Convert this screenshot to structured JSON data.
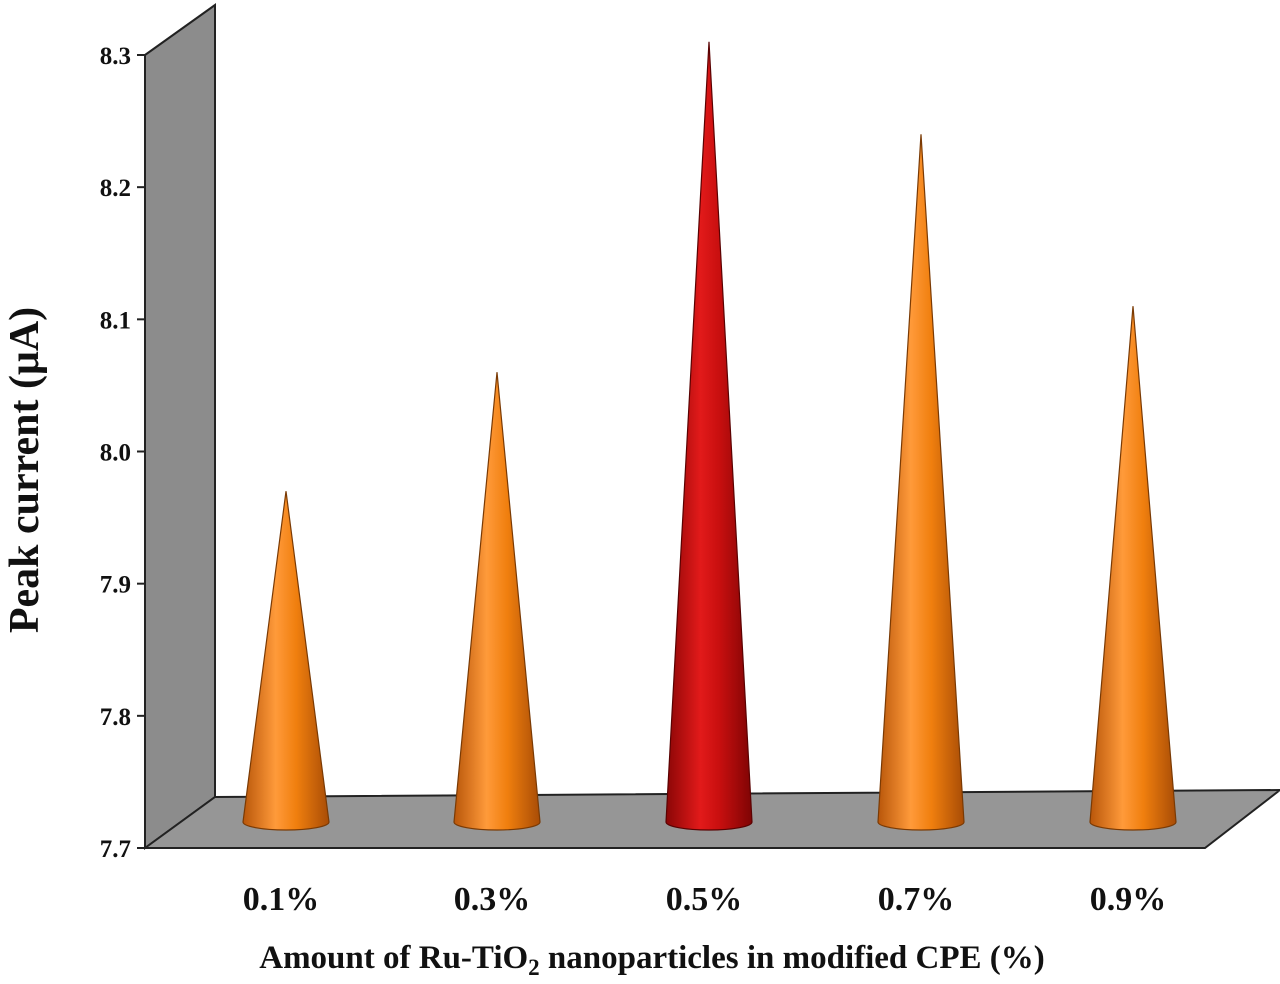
{
  "chart_data": {
    "type": "bar",
    "style": "3d-cone",
    "categories": [
      "0.1%",
      "0.3%",
      "0.5%",
      "0.7%",
      "0.9%"
    ],
    "values": [
      7.97,
      8.06,
      8.31,
      8.24,
      8.11
    ],
    "highlight_index": 2,
    "ylabel": "Peak current (μA)",
    "xlabel_parts": {
      "prefix": "Amount of Ru-TiO",
      "subscript": "2",
      "suffix": " nanoparticles in modified CPE (%)"
    },
    "ylim": [
      7.7,
      8.3
    ],
    "yticks": [
      "7.7",
      "7.8",
      "7.9",
      "8.0",
      "8.1",
      "8.2",
      "8.3"
    ],
    "grid": false,
    "legend": "none",
    "colors": {
      "cone": "#f07f0e",
      "cone_highlight": "#c80f0f",
      "wall": "#8c8c8c",
      "floor": "#969696"
    }
  }
}
